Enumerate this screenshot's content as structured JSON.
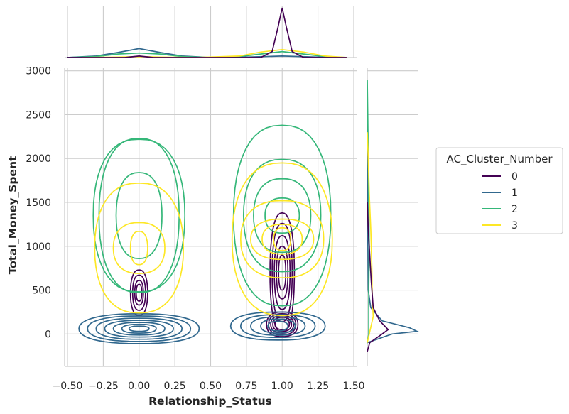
{
  "chart_data": {
    "type": "kde-jointplot",
    "xlabel": "Relationship_Status",
    "ylabel": "Total_Money_Spent",
    "xlim": [
      -0.52,
      1.52
    ],
    "ylim": [
      -370,
      3030
    ],
    "x_ticks": [
      -0.5,
      -0.25,
      0.0,
      0.25,
      0.5,
      0.75,
      1.0,
      1.25,
      1.5
    ],
    "x_tick_labels": [
      "−0.50",
      "−0.25",
      "0.00",
      "0.25",
      "0.50",
      "0.75",
      "1.00",
      "1.25",
      "1.50"
    ],
    "y_ticks": [
      0,
      500,
      1000,
      1500,
      2000,
      2500,
      3000
    ],
    "y_tick_labels": [
      "0",
      "500",
      "1000",
      "1500",
      "2000",
      "2500",
      "3000"
    ],
    "grid": true,
    "legend": {
      "title": "AC_Cluster_Number",
      "placement": "right",
      "entries": [
        "0",
        "1",
        "2",
        "3"
      ]
    },
    "series": [
      {
        "name": "0",
        "color": "#440154",
        "groups": [
          {
            "cx": 0.0,
            "cy": 470,
            "contours": [
              [
                0.06,
                260
              ],
              [
                0.045,
                200
              ],
              [
                0.03,
                140
              ],
              [
                0.02,
                95
              ]
            ]
          },
          {
            "cx": 1.0,
            "cy": 110,
            "contours": [
              [
                0.11,
                140
              ],
              [
                0.095,
                120
              ],
              [
                0.08,
                100
              ],
              [
                0.065,
                80
              ],
              [
                0.05,
                60
              ]
            ]
          },
          {
            "cx": 1.0,
            "cy": 700,
            "contours": [
              [
                0.085,
                680
              ],
              [
                0.07,
                560
              ],
              [
                0.055,
                420
              ],
              [
                0.04,
                300
              ],
              [
                0.025,
                200
              ]
            ]
          }
        ]
      },
      {
        "name": "1",
        "color": "#31688e",
        "groups": [
          {
            "cx": 0.0,
            "cy": 60,
            "contours": [
              [
                0.42,
                170
              ],
              [
                0.36,
                145
              ],
              [
                0.3,
                120
              ],
              [
                0.24,
                95
              ],
              [
                0.18,
                72
              ],
              [
                0.12,
                50
              ],
              [
                0.07,
                30
              ]
            ]
          },
          {
            "cx": 0.97,
            "cy": 90,
            "contours": [
              [
                0.33,
                160
              ],
              [
                0.26,
                130
              ],
              [
                0.19,
                105
              ],
              [
                0.12,
                80
              ],
              [
                0.07,
                55
              ]
            ]
          }
        ]
      },
      {
        "name": "2",
        "color": "#35b779",
        "groups": [
          {
            "cx": 0.0,
            "cy": 1350,
            "contours": [
              [
                0.32,
                870
              ],
              [
                0.28,
                880
              ],
              [
                0.16,
                490
              ]
            ]
          },
          {
            "cx": 1.0,
            "cy": 1350,
            "contours": [
              [
                0.34,
                1030
              ],
              [
                0.27,
                640
              ],
              [
                0.2,
                420
              ],
              [
                0.12,
                200
              ]
            ]
          }
        ]
      },
      {
        "name": "3",
        "color": "#fde725",
        "groups": [
          {
            "cx": 0.0,
            "cy": 980,
            "contours": [
              [
                0.31,
                740
              ],
              [
                0.18,
                290
              ],
              [
                0.06,
                190
              ]
            ]
          },
          {
            "cx": 1.0,
            "cy": 1080,
            "contours": [
              [
                0.35,
                870
              ],
              [
                0.29,
                440
              ],
              [
                0.22,
                230
              ],
              [
                0.14,
                170
              ],
              [
                0.06,
                130
              ]
            ]
          }
        ]
      }
    ],
    "marginal_x": {
      "0": [
        [
          -0.5,
          0.0
        ],
        [
          -0.1,
          0.0
        ],
        [
          0.0,
          0.03
        ],
        [
          0.1,
          0.0
        ],
        [
          0.85,
          0.0
        ],
        [
          0.93,
          0.12
        ],
        [
          0.97,
          0.6
        ],
        [
          1.0,
          1.0
        ],
        [
          1.03,
          0.6
        ],
        [
          1.07,
          0.12
        ],
        [
          1.15,
          0.0
        ],
        [
          1.45,
          0.0
        ]
      ],
      "1": [
        [
          -0.5,
          0.0
        ],
        [
          -0.3,
          0.03
        ],
        [
          -0.15,
          0.1
        ],
        [
          0.0,
          0.18
        ],
        [
          0.15,
          0.1
        ],
        [
          0.3,
          0.03
        ],
        [
          0.5,
          0.0
        ],
        [
          0.75,
          0.01
        ],
        [
          1.0,
          0.03
        ],
        [
          1.25,
          0.01
        ],
        [
          1.45,
          0.0
        ]
      ],
      "2": [
        [
          -0.5,
          0.0
        ],
        [
          -0.3,
          0.02
        ],
        [
          -0.15,
          0.07
        ],
        [
          0.0,
          0.09
        ],
        [
          0.15,
          0.07
        ],
        [
          0.3,
          0.02
        ],
        [
          0.5,
          0.0
        ],
        [
          0.7,
          0.02
        ],
        [
          0.85,
          0.07
        ],
        [
          1.0,
          0.12
        ],
        [
          1.15,
          0.07
        ],
        [
          1.3,
          0.02
        ],
        [
          1.45,
          0.0
        ]
      ],
      "3": [
        [
          -0.4,
          0.0
        ],
        [
          -0.15,
          0.01
        ],
        [
          0.0,
          0.02
        ],
        [
          0.15,
          0.01
        ],
        [
          0.4,
          0.0
        ],
        [
          0.7,
          0.03
        ],
        [
          0.85,
          0.11
        ],
        [
          1.0,
          0.16
        ],
        [
          1.15,
          0.11
        ],
        [
          1.3,
          0.03
        ],
        [
          1.45,
          0.0
        ]
      ]
    },
    "marginal_y": {
      "0": [
        [
          -200,
          0.0
        ],
        [
          -100,
          0.05
        ],
        [
          0,
          0.3
        ],
        [
          50,
          0.42
        ],
        [
          150,
          0.25
        ],
        [
          300,
          0.12
        ],
        [
          600,
          0.08
        ],
        [
          900,
          0.05
        ],
        [
          1200,
          0.02
        ],
        [
          1500,
          0.0
        ]
      ],
      "1": [
        [
          -100,
          0.0
        ],
        [
          0,
          0.5
        ],
        [
          30,
          1.0
        ],
        [
          70,
          0.85
        ],
        [
          150,
          0.3
        ],
        [
          300,
          0.07
        ],
        [
          500,
          0.02
        ],
        [
          1200,
          0.01
        ],
        [
          2500,
          0.0
        ],
        [
          2800,
          0.0
        ]
      ],
      "2": [
        [
          -100,
          0.0
        ],
        [
          0,
          0.03
        ],
        [
          500,
          0.03
        ],
        [
          1000,
          0.04
        ],
        [
          1500,
          0.03
        ],
        [
          2000,
          0.02
        ],
        [
          2500,
          0.01
        ],
        [
          2900,
          0.0
        ]
      ],
      "3": [
        [
          -100,
          0.0
        ],
        [
          0,
          0.04
        ],
        [
          200,
          0.12
        ],
        [
          400,
          0.1
        ],
        [
          800,
          0.09
        ],
        [
          1200,
          0.07
        ],
        [
          1600,
          0.04
        ],
        [
          2000,
          0.02
        ],
        [
          2300,
          0.0
        ]
      ]
    }
  }
}
